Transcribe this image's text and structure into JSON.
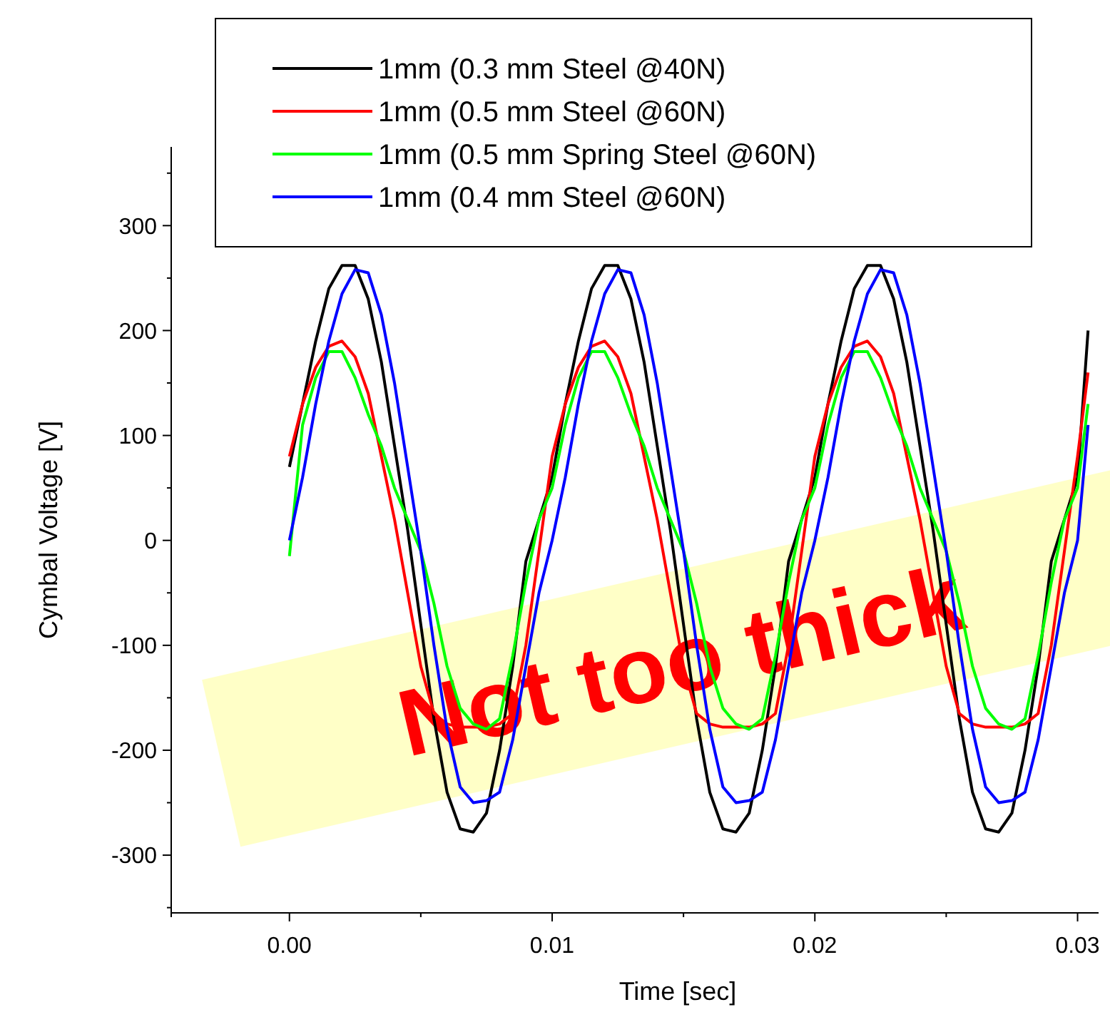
{
  "chart_data": {
    "type": "line",
    "xlabel": "Time [sec]",
    "ylabel": "Cymbal Voltage [V]",
    "x": [
      0,
      0.0005,
      0.001,
      0.0015,
      0.002,
      0.0025,
      0.003,
      0.0035,
      0.004,
      0.0045,
      0.005,
      0.0055,
      0.006,
      0.0065,
      0.007,
      0.0075,
      0.008,
      0.0085,
      0.009,
      0.0095,
      0.01,
      0.0105,
      0.011,
      0.0115,
      0.012,
      0.0125,
      0.013,
      0.0135,
      0.014,
      0.0145,
      0.015,
      0.0155,
      0.016,
      0.0165,
      0.017,
      0.0175,
      0.018,
      0.0185,
      0.019,
      0.0195,
      0.02,
      0.0205,
      0.021,
      0.0215,
      0.022,
      0.0225,
      0.023,
      0.0235,
      0.024,
      0.0245,
      0.025,
      0.0255,
      0.026,
      0.0265,
      0.027,
      0.0275,
      0.028,
      0.0285,
      0.029,
      0.0295,
      0.03,
      0.0304
    ],
    "series": [
      {
        "name": "1mm (0.3 mm Steel @40N)",
        "color": "#000000",
        "values": [
          70,
          130,
          190,
          240,
          262,
          262,
          230,
          170,
          90,
          10,
          -80,
          -170,
          -240,
          -275,
          -278,
          -260,
          -200,
          -120,
          -20,
          20,
          60,
          130,
          190,
          240,
          262,
          262,
          230,
          170,
          90,
          10,
          -80,
          -170,
          -240,
          -275,
          -278,
          -260,
          -200,
          -120,
          -20,
          20,
          60,
          130,
          190,
          240,
          262,
          262,
          230,
          170,
          90,
          10,
          -80,
          -170,
          -240,
          -275,
          -278,
          -260,
          -200,
          -120,
          -20,
          20,
          60,
          200
        ]
      },
      {
        "name": "1mm (0.5 mm Steel @60N)",
        "color": "#ff0000",
        "values": [
          80,
          130,
          165,
          185,
          190,
          175,
          140,
          80,
          20,
          -50,
          -120,
          -165,
          -175,
          -178,
          -178,
          -178,
          -175,
          -165,
          -100,
          -10,
          80,
          130,
          165,
          185,
          190,
          175,
          140,
          80,
          20,
          -50,
          -120,
          -165,
          -175,
          -178,
          -178,
          -178,
          -175,
          -165,
          -100,
          -10,
          80,
          130,
          165,
          185,
          190,
          175,
          140,
          80,
          20,
          -50,
          -120,
          -165,
          -175,
          -178,
          -178,
          -178,
          -175,
          -165,
          -100,
          -10,
          80,
          160
        ]
      },
      {
        "name": "1mm (0.5 mm Spring Steel @60N)",
        "color": "#00ff00",
        "values": [
          -15,
          110,
          155,
          180,
          180,
          155,
          120,
          90,
          50,
          20,
          -10,
          -60,
          -120,
          -160,
          -175,
          -180,
          -170,
          -110,
          -40,
          20,
          50,
          110,
          155,
          180,
          180,
          155,
          120,
          90,
          50,
          20,
          -10,
          -60,
          -120,
          -160,
          -175,
          -180,
          -170,
          -110,
          -40,
          20,
          50,
          110,
          155,
          180,
          180,
          155,
          120,
          90,
          50,
          20,
          -10,
          -60,
          -120,
          -160,
          -175,
          -180,
          -170,
          -110,
          -40,
          20,
          50,
          130
        ]
      },
      {
        "name": "1mm (0.4 mm Steel @60N)",
        "color": "#0000ff",
        "values": [
          0,
          60,
          130,
          190,
          235,
          258,
          255,
          215,
          150,
          70,
          -10,
          -100,
          -180,
          -235,
          -250,
          -248,
          -240,
          -190,
          -120,
          -50,
          0,
          60,
          130,
          190,
          235,
          258,
          255,
          215,
          150,
          70,
          -10,
          -100,
          -180,
          -235,
          -250,
          -248,
          -240,
          -190,
          -120,
          -50,
          0,
          60,
          130,
          190,
          235,
          258,
          255,
          215,
          150,
          70,
          -10,
          -100,
          -180,
          -235,
          -250,
          -248,
          -240,
          -190,
          -120,
          -50,
          0,
          110
        ]
      }
    ],
    "xlim": [
      -0.0045,
      0.0308
    ],
    "xticks": [
      {
        "value": -0.0045,
        "label": null
      },
      {
        "value": 0,
        "label": "0.00"
      },
      {
        "value": 0.005,
        "label": null
      },
      {
        "value": 0.01,
        "label": "0.01"
      },
      {
        "value": 0.015,
        "label": null
      },
      {
        "value": 0.02,
        "label": "0.02"
      },
      {
        "value": 0.025,
        "label": null
      },
      {
        "value": 0.03,
        "label": "0.03"
      }
    ],
    "ylim": [
      -355,
      375
    ],
    "yticks": [
      {
        "value": -350,
        "label": null
      },
      -300,
      {
        "value": -250,
        "label": null
      },
      -200,
      {
        "value": -150,
        "label": null
      },
      -100,
      {
        "value": -50,
        "label": null
      },
      0,
      {
        "value": 50,
        "label": null
      },
      100,
      {
        "value": 150,
        "label": null
      },
      200,
      {
        "value": 250,
        "label": null
      },
      300,
      {
        "value": 350,
        "label": null
      }
    ],
    "annotations": [
      "Not too thick"
    ],
    "legend": "top",
    "grid": false,
    "marker": "none",
    "line_style": "solid"
  }
}
